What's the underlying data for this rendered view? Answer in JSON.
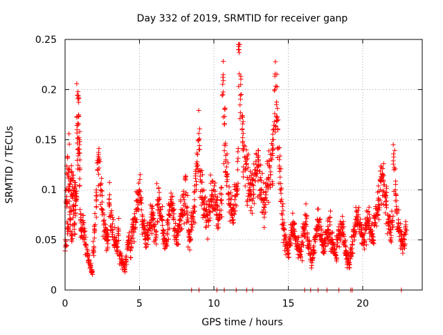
{
  "chart_data": {
    "type": "scatter",
    "title": "Day 332 of 2019, SRMTID for receiver ganp",
    "xlabel": "GPS time / hours",
    "ylabel": "SRMTID / TECUs",
    "xlim": [
      0,
      24
    ],
    "ylim": [
      0,
      0.25
    ],
    "x_ticks": [
      0,
      5,
      10,
      15,
      20
    ],
    "x_tick_labels": [
      "0",
      "5",
      "10",
      "15",
      "20"
    ],
    "y_ticks": [
      0,
      0.05,
      0.1,
      0.15,
      0.2,
      0.25
    ],
    "y_tick_labels": [
      "0",
      "0.05",
      "0.1",
      "0.15",
      "0.2",
      "0.25"
    ],
    "grid": true,
    "marker": "+",
    "series_color": "#ff0000",
    "series": [
      {
        "name": "SRMTID",
        "points": [
          [
            0.05,
            0.045
          ],
          [
            0.1,
            0.09
          ],
          [
            0.15,
            0.115
          ],
          [
            0.2,
            0.06
          ],
          [
            0.25,
            0.12
          ],
          [
            0.3,
            0.1
          ],
          [
            0.35,
            0.07
          ],
          [
            0.4,
            0.11
          ],
          [
            0.45,
            0.055
          ],
          [
            0.5,
            0.095
          ],
          [
            0.55,
            0.08
          ],
          [
            0.6,
            0.1
          ],
          [
            0.65,
            0.065
          ],
          [
            0.7,
            0.105
          ],
          [
            0.75,
            0.09
          ],
          [
            0.8,
            0.16
          ],
          [
            0.85,
            0.14
          ],
          [
            0.9,
            0.173
          ],
          [
            0.95,
            0.15
          ],
          [
            1.0,
            0.12
          ],
          [
            1.05,
            0.07
          ],
          [
            1.1,
            0.06
          ],
          [
            1.2,
            0.065
          ],
          [
            1.3,
            0.055
          ],
          [
            1.4,
            0.045
          ],
          [
            1.5,
            0.035
          ],
          [
            1.6,
            0.03
          ],
          [
            1.7,
            0.025
          ],
          [
            1.8,
            0.017
          ],
          [
            1.9,
            0.04
          ],
          [
            2.0,
            0.06
          ],
          [
            2.1,
            0.09
          ],
          [
            2.2,
            0.12
          ],
          [
            2.3,
            0.13
          ],
          [
            2.4,
            0.1
          ],
          [
            2.5,
            0.08
          ],
          [
            2.6,
            0.065
          ],
          [
            2.7,
            0.06
          ],
          [
            2.8,
            0.055
          ],
          [
            2.9,
            0.05
          ],
          [
            3.0,
            0.085
          ],
          [
            3.1,
            0.075
          ],
          [
            3.2,
            0.06
          ],
          [
            3.3,
            0.05
          ],
          [
            3.4,
            0.045
          ],
          [
            3.5,
            0.04
          ],
          [
            3.6,
            0.06
          ],
          [
            3.7,
            0.035
          ],
          [
            3.8,
            0.03
          ],
          [
            3.9,
            0.025
          ],
          [
            4.0,
            0.02
          ],
          [
            4.1,
            0.03
          ],
          [
            4.2,
            0.045
          ],
          [
            4.3,
            0.05
          ],
          [
            4.4,
            0.04
          ],
          [
            4.5,
            0.06
          ],
          [
            4.6,
            0.065
          ],
          [
            4.7,
            0.07
          ],
          [
            4.8,
            0.08
          ],
          [
            4.9,
            0.085
          ],
          [
            5.0,
            0.1
          ],
          [
            5.1,
            0.09
          ],
          [
            5.2,
            0.07
          ],
          [
            5.3,
            0.06
          ],
          [
            5.4,
            0.05
          ],
          [
            5.5,
            0.055
          ],
          [
            5.6,
            0.06
          ],
          [
            5.7,
            0.065
          ],
          [
            5.8,
            0.07
          ],
          [
            5.9,
            0.075
          ],
          [
            6.0,
            0.06
          ],
          [
            6.1,
            0.055
          ],
          [
            6.2,
            0.085
          ],
          [
            6.3,
            0.09
          ],
          [
            6.4,
            0.08
          ],
          [
            6.5,
            0.07
          ],
          [
            6.6,
            0.06
          ],
          [
            6.7,
            0.05
          ],
          [
            6.8,
            0.045
          ],
          [
            6.9,
            0.065
          ],
          [
            7.0,
            0.075
          ],
          [
            7.1,
            0.085
          ],
          [
            7.2,
            0.08
          ],
          [
            7.3,
            0.07
          ],
          [
            7.4,
            0.06
          ],
          [
            7.5,
            0.05
          ],
          [
            7.6,
            0.055
          ],
          [
            7.7,
            0.065
          ],
          [
            7.8,
            0.075
          ],
          [
            7.9,
            0.08
          ],
          [
            8.0,
            0.09
          ],
          [
            8.1,
            0.095
          ],
          [
            8.2,
            0.075
          ],
          [
            8.3,
            0.06
          ],
          [
            8.4,
            0.05
          ],
          [
            8.5,
            0.065
          ],
          [
            8.6,
            0.07
          ],
          [
            8.7,
            0.09
          ],
          [
            8.8,
            0.12
          ],
          [
            8.9,
            0.135
          ],
          [
            9.0,
            0.14
          ],
          [
            9.1,
            0.11
          ],
          [
            9.2,
            0.1
          ],
          [
            9.3,
            0.09
          ],
          [
            9.4,
            0.08
          ],
          [
            9.5,
            0.075
          ],
          [
            9.6,
            0.07
          ],
          [
            9.7,
            0.085
          ],
          [
            9.8,
            0.09
          ],
          [
            9.9,
            0.095
          ],
          [
            10.0,
            0.1
          ],
          [
            10.1,
            0.085
          ],
          [
            10.2,
            0.08
          ],
          [
            10.3,
            0.07
          ],
          [
            10.4,
            0.075
          ],
          [
            10.5,
            0.09
          ],
          [
            10.6,
            0.195
          ],
          [
            10.7,
            0.165
          ],
          [
            10.8,
            0.13
          ],
          [
            10.9,
            0.11
          ],
          [
            11.0,
            0.09
          ],
          [
            11.1,
            0.085
          ],
          [
            11.2,
            0.08
          ],
          [
            11.3,
            0.07
          ],
          [
            11.4,
            0.09
          ],
          [
            11.5,
            0.1
          ],
          [
            11.6,
            0.12
          ],
          [
            11.7,
            0.237
          ],
          [
            11.8,
            0.205
          ],
          [
            11.9,
            0.16
          ],
          [
            12.0,
            0.14
          ],
          [
            12.1,
            0.12
          ],
          [
            12.2,
            0.13
          ],
          [
            12.3,
            0.11
          ],
          [
            12.4,
            0.1
          ],
          [
            12.5,
            0.095
          ],
          [
            12.6,
            0.105
          ],
          [
            12.7,
            0.115
          ],
          [
            12.8,
            0.12
          ],
          [
            12.9,
            0.125
          ],
          [
            13.0,
            0.13
          ],
          [
            13.1,
            0.11
          ],
          [
            13.2,
            0.1
          ],
          [
            13.3,
            0.09
          ],
          [
            13.4,
            0.085
          ],
          [
            13.5,
            0.095
          ],
          [
            13.6,
            0.105
          ],
          [
            13.7,
            0.11
          ],
          [
            13.8,
            0.115
          ],
          [
            13.9,
            0.13
          ],
          [
            14.0,
            0.15
          ],
          [
            14.1,
            0.2
          ],
          [
            14.2,
            0.185
          ],
          [
            14.3,
            0.16
          ],
          [
            14.4,
            0.13
          ],
          [
            14.5,
            0.1
          ],
          [
            14.6,
            0.075
          ],
          [
            14.7,
            0.06
          ],
          [
            14.8,
            0.05
          ],
          [
            14.9,
            0.045
          ],
          [
            15.0,
            0.04
          ],
          [
            15.1,
            0.05
          ],
          [
            15.2,
            0.055
          ],
          [
            15.3,
            0.065
          ],
          [
            15.4,
            0.06
          ],
          [
            15.5,
            0.05
          ],
          [
            15.6,
            0.045
          ],
          [
            15.7,
            0.04
          ],
          [
            15.8,
            0.035
          ],
          [
            15.9,
            0.045
          ],
          [
            16.0,
            0.055
          ],
          [
            16.1,
            0.06
          ],
          [
            16.2,
            0.065
          ],
          [
            16.3,
            0.05
          ],
          [
            16.4,
            0.045
          ],
          [
            16.5,
            0.035
          ],
          [
            16.6,
            0.03
          ],
          [
            16.7,
            0.04
          ],
          [
            16.8,
            0.05
          ],
          [
            16.9,
            0.06
          ],
          [
            17.0,
            0.065
          ],
          [
            17.1,
            0.07
          ],
          [
            17.2,
            0.055
          ],
          [
            17.3,
            0.045
          ],
          [
            17.4,
            0.04
          ],
          [
            17.5,
            0.05
          ],
          [
            17.6,
            0.055
          ],
          [
            17.7,
            0.06
          ],
          [
            17.8,
            0.065
          ],
          [
            17.9,
            0.05
          ],
          [
            18.0,
            0.045
          ],
          [
            18.1,
            0.04
          ],
          [
            18.2,
            0.035
          ],
          [
            18.3,
            0.05
          ],
          [
            18.4,
            0.055
          ],
          [
            18.5,
            0.06
          ],
          [
            18.6,
            0.065
          ],
          [
            18.7,
            0.055
          ],
          [
            18.8,
            0.045
          ],
          [
            18.9,
            0.035
          ],
          [
            19.0,
            0.03
          ],
          [
            19.1,
            0.025
          ],
          [
            19.2,
            0.035
          ],
          [
            19.3,
            0.045
          ],
          [
            19.4,
            0.055
          ],
          [
            19.5,
            0.065
          ],
          [
            19.6,
            0.07
          ],
          [
            19.7,
            0.075
          ],
          [
            19.8,
            0.065
          ],
          [
            19.9,
            0.06
          ],
          [
            20.0,
            0.055
          ],
          [
            20.1,
            0.05
          ],
          [
            20.2,
            0.06
          ],
          [
            20.3,
            0.065
          ],
          [
            20.4,
            0.07
          ],
          [
            20.5,
            0.06
          ],
          [
            20.6,
            0.055
          ],
          [
            20.7,
            0.05
          ],
          [
            20.8,
            0.065
          ],
          [
            20.9,
            0.075
          ],
          [
            21.0,
            0.08
          ],
          [
            21.1,
            0.09
          ],
          [
            21.2,
            0.1
          ],
          [
            21.3,
            0.11
          ],
          [
            21.4,
            0.105
          ],
          [
            21.5,
            0.095
          ],
          [
            21.6,
            0.085
          ],
          [
            21.7,
            0.075
          ],
          [
            21.8,
            0.065
          ],
          [
            21.9,
            0.06
          ],
          [
            22.0,
            0.065
          ],
          [
            22.1,
            0.12
          ],
          [
            22.2,
            0.1
          ],
          [
            22.3,
            0.08
          ],
          [
            22.4,
            0.07
          ],
          [
            22.5,
            0.06
          ],
          [
            22.6,
            0.05
          ],
          [
            22.7,
            0.045
          ],
          [
            22.8,
            0.05
          ],
          [
            22.9,
            0.065
          ]
        ]
      }
    ],
    "zero_marker_x": [
      8.5,
      9.0,
      10.2,
      10.7,
      11.5,
      12.2,
      12.6,
      16.1,
      16.5,
      17.0,
      17.6,
      18.4,
      19.2,
      19.3,
      22.6
    ]
  }
}
